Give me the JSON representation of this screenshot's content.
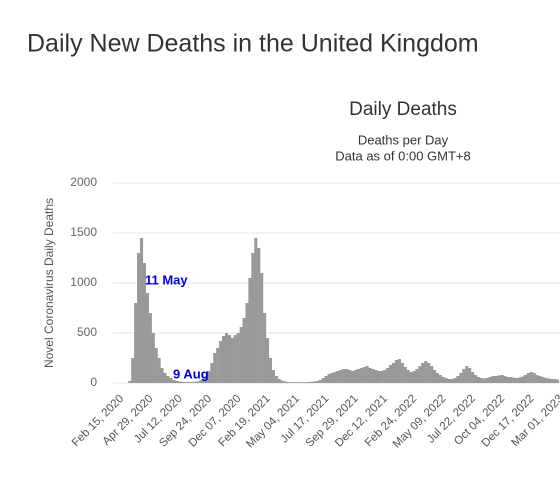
{
  "page_title": "Daily New Deaths in the United Kingdom",
  "chart_data": {
    "type": "bar",
    "title": "Daily Deaths",
    "subtitle": "Deaths per Day",
    "note": "Data as of 0:00 GMT+8",
    "y_label": "Novel Coronavirus Daily Deaths",
    "color": "#999999",
    "grid": true,
    "ylim": [
      0,
      2000
    ],
    "yticks": [
      0,
      500,
      1000,
      1500,
      2000
    ],
    "annotations": [
      "11 May",
      "9 Aug"
    ],
    "categories": [
      "Feb 15, 2020",
      null,
      null,
      null,
      null,
      null,
      null,
      null,
      null,
      null,
      "Apr 29, 2020",
      null,
      null,
      null,
      null,
      null,
      null,
      null,
      null,
      null,
      "Jul 12, 2020",
      null,
      null,
      null,
      null,
      null,
      null,
      null,
      null,
      null,
      "Sep 24, 2020",
      null,
      null,
      null,
      null,
      null,
      null,
      null,
      null,
      null,
      "Dec 07, 2020",
      null,
      null,
      null,
      null,
      null,
      null,
      null,
      null,
      null,
      "Feb 19, 2021",
      null,
      null,
      null,
      null,
      null,
      null,
      null,
      null,
      null,
      "May 04, 2021",
      null,
      null,
      null,
      null,
      null,
      null,
      null,
      null,
      null,
      "Jul 17, 2021",
      null,
      null,
      null,
      null,
      null,
      null,
      null,
      null,
      null,
      "Sep 29, 2021",
      null,
      null,
      null,
      null,
      null,
      null,
      null,
      null,
      null,
      "Dec 12, 2021",
      null,
      null,
      null,
      null,
      null,
      null,
      null,
      null,
      null,
      "Feb 24, 2022",
      null,
      null,
      null,
      null,
      null,
      null,
      null,
      null,
      null,
      "May 09, 2022",
      null,
      null,
      null,
      null,
      null,
      null,
      null,
      null,
      null,
      "Jul 22, 2022",
      null,
      null,
      null,
      null,
      null,
      null,
      null,
      null,
      null,
      "Oct 04, 2022",
      null,
      null,
      null,
      null,
      null,
      null,
      null,
      null,
      null,
      "Dec 17, 2022",
      null,
      null,
      null,
      null,
      null,
      null,
      null,
      null,
      null,
      "Mar 01, 2023"
    ],
    "values": [
      0,
      0,
      0,
      0,
      20,
      250,
      800,
      1300,
      1450,
      1200,
      900,
      700,
      500,
      350,
      250,
      150,
      100,
      70,
      50,
      30,
      20,
      15,
      12,
      10,
      10,
      10,
      12,
      15,
      25,
      40,
      70,
      120,
      200,
      300,
      350,
      420,
      470,
      500,
      480,
      450,
      480,
      500,
      560,
      650,
      800,
      1050,
      1300,
      1450,
      1350,
      1100,
      700,
      450,
      250,
      130,
      70,
      40,
      25,
      15,
      10,
      8,
      8,
      8,
      8,
      8,
      8,
      10,
      12,
      15,
      20,
      30,
      50,
      70,
      90,
      100,
      110,
      120,
      130,
      140,
      140,
      130,
      120,
      130,
      140,
      150,
      160,
      170,
      150,
      140,
      130,
      120,
      120,
      130,
      150,
      180,
      200,
      230,
      240,
      200,
      160,
      130,
      110,
      120,
      140,
      170,
      200,
      220,
      200,
      170,
      130,
      100,
      80,
      60,
      50,
      40,
      40,
      50,
      70,
      100,
      140,
      170,
      150,
      110,
      80,
      60,
      50,
      45,
      50,
      60,
      70,
      70,
      75,
      80,
      70,
      60,
      60,
      55,
      50,
      55,
      65,
      80,
      100,
      110,
      100,
      80,
      70,
      60,
      50,
      45,
      40,
      40,
      35
    ]
  }
}
